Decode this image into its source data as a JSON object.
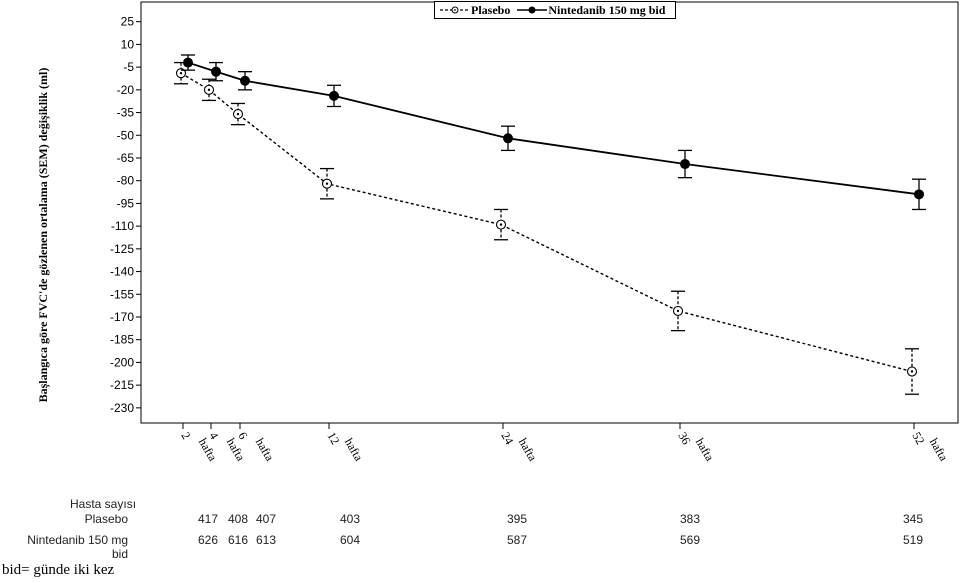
{
  "chart_data": {
    "type": "line",
    "ylabel": "Başlangıca göre FVC'de gözlenen ortalama (SEM) değişiklik (ml)",
    "x": [
      2,
      4,
      6,
      12,
      24,
      36,
      52
    ],
    "x_tick_labels": [
      {
        "num": "2",
        "unit": "hafta"
      },
      {
        "num": "4",
        "unit": "hafta"
      },
      {
        "num": "6",
        "unit": "hafta"
      },
      {
        "num": "12",
        "unit": "hafta"
      },
      {
        "num": "24",
        "unit": "hafta"
      },
      {
        "num": "36",
        "unit": "hafta"
      },
      {
        "num": "52",
        "unit": "hafta"
      }
    ],
    "y_ticks": [
      25,
      10,
      -5,
      -20,
      -35,
      -50,
      -65,
      -80,
      -95,
      -110,
      -125,
      -140,
      -155,
      -170,
      -185,
      -200,
      -215,
      -230
    ],
    "y_tick_labels": [
      "25",
      "10",
      "-5",
      "-20",
      "-35",
      "-50",
      "-65",
      "-80",
      "-95",
      "-110",
      "-125",
      "-140",
      "-155",
      "-170",
      "-185",
      "-200",
      "-215",
      "-230"
    ],
    "ylim": [
      -240,
      38
    ],
    "series": [
      {
        "name": "Plasebo",
        "style": "dashed",
        "marker": "open-circle-dot",
        "color": "#000000",
        "values": [
          -9,
          -20,
          -36,
          -82,
          -109,
          -166,
          -206
        ],
        "sem": [
          7,
          7,
          7,
          10,
          10,
          13,
          15
        ]
      },
      {
        "name": "Nintedanib 150 mg bid",
        "style": "solid",
        "marker": "filled-circle",
        "color": "#000000",
        "values": [
          -2,
          -8,
          -14,
          -24,
          -52,
          -69,
          -89
        ],
        "sem": [
          5,
          6,
          6,
          7,
          8,
          9,
          10
        ]
      }
    ],
    "legend": {
      "position": "top-center",
      "items": [
        "Plasebo",
        "Nintedanib 150 mg bid"
      ]
    }
  },
  "patient_table": {
    "header": "Hasta sayısı",
    "rows": [
      {
        "label": "Plasebo",
        "values": [
          "417",
          "408",
          "407",
          "403",
          "395",
          "383",
          "345"
        ]
      },
      {
        "label": "Nintedanib 150 mg bid",
        "values": [
          "626",
          "616",
          "613",
          "604",
          "587",
          "569",
          "519"
        ]
      }
    ]
  },
  "footnote": "bid= günde iki kez"
}
